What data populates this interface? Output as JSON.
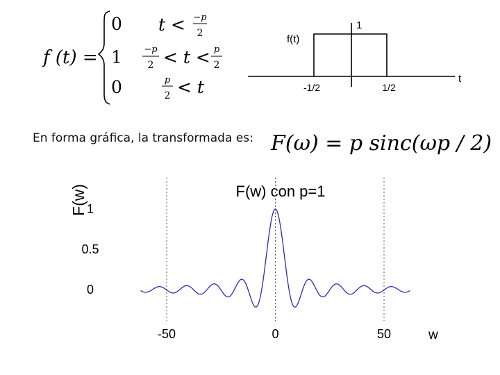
{
  "piecewise": {
    "lhs": "f (t) =",
    "rows": [
      {
        "value": "0",
        "lhs": "t <",
        "num": "−p",
        "den": "2"
      },
      {
        "value": "1",
        "lnum": "−p",
        "lden": "2",
        "mid": "< t <",
        "rnum": "p",
        "rden": "2"
      },
      {
        "value": "0",
        "num": "p",
        "den": "2",
        "rhs": "< t"
      }
    ]
  },
  "pulse_plot": {
    "y_label": "f(t)",
    "x_label": "t",
    "height_label": "1",
    "left_edge_label": "-1/2",
    "right_edge_label": "1/2"
  },
  "caption": "En forma gráfica, la transformada es:",
  "transform_formula": "F(ω) = p sinc(ωp / 2)",
  "chart_data": {
    "type": "line",
    "title": "F(w) con p=1",
    "xlabel": "w",
    "ylabel": "F(w)",
    "xlim": [
      -62,
      62
    ],
    "ylim": [
      -0.3,
      1.2
    ],
    "x_ticks": [
      "-50",
      "0",
      "50"
    ],
    "x_tick_values": [
      -50,
      0,
      50
    ],
    "y_ticks": [
      "1",
      "0.5",
      "0"
    ],
    "y_tick_values": [
      1,
      0.5,
      0
    ],
    "grid": "vertical dotted at x ticks",
    "series": [
      {
        "function": "p*sinc(w*p/2), p=1",
        "p": 1,
        "color": "#2b2bb8",
        "x_range": [
          -62,
          62
        ]
      }
    ]
  }
}
